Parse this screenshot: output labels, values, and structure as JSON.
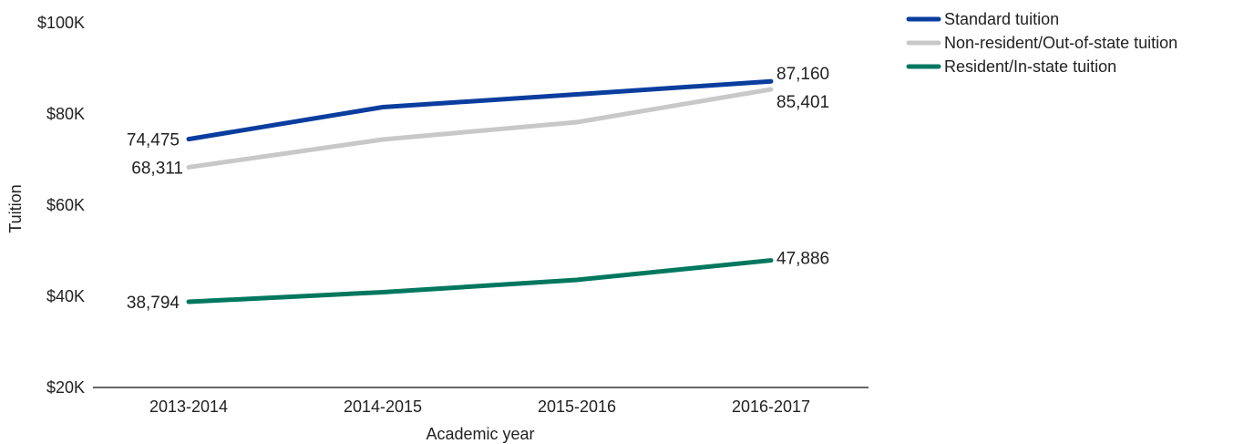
{
  "chart_data": {
    "type": "line",
    "title": "",
    "xlabel": "Academic year",
    "ylabel": "Tuition",
    "categories": [
      "2013-2014",
      "2014-2015",
      "2015-2016",
      "2016-2017"
    ],
    "ylim": [
      20000,
      100000
    ],
    "y_ticks": [
      {
        "value": 20000,
        "label": "$20K"
      },
      {
        "value": 40000,
        "label": "$40K"
      },
      {
        "value": 60000,
        "label": "$60K"
      },
      {
        "value": 80000,
        "label": "$80K"
      },
      {
        "value": 100000,
        "label": "$100K"
      }
    ],
    "grid": false,
    "legend_position": "top-right",
    "series": [
      {
        "name": "Standard tuition",
        "color": "#0a3d9e",
        "values": [
          74475,
          81500,
          84300,
          87160
        ],
        "labels": {
          "first": "74,475",
          "last": "87,160"
        }
      },
      {
        "name": "Non-resident/Out-of-state tuition",
        "color": "#c8c8c8",
        "values": [
          68311,
          74400,
          78200,
          85401
        ],
        "labels": {
          "first": "68,311",
          "last": "85,401"
        }
      },
      {
        "name": "Resident/In-state tuition",
        "color": "#00775f",
        "values": [
          38794,
          40900,
          43600,
          47886
        ],
        "labels": {
          "first": "38,794",
          "last": "47,886"
        }
      }
    ]
  }
}
